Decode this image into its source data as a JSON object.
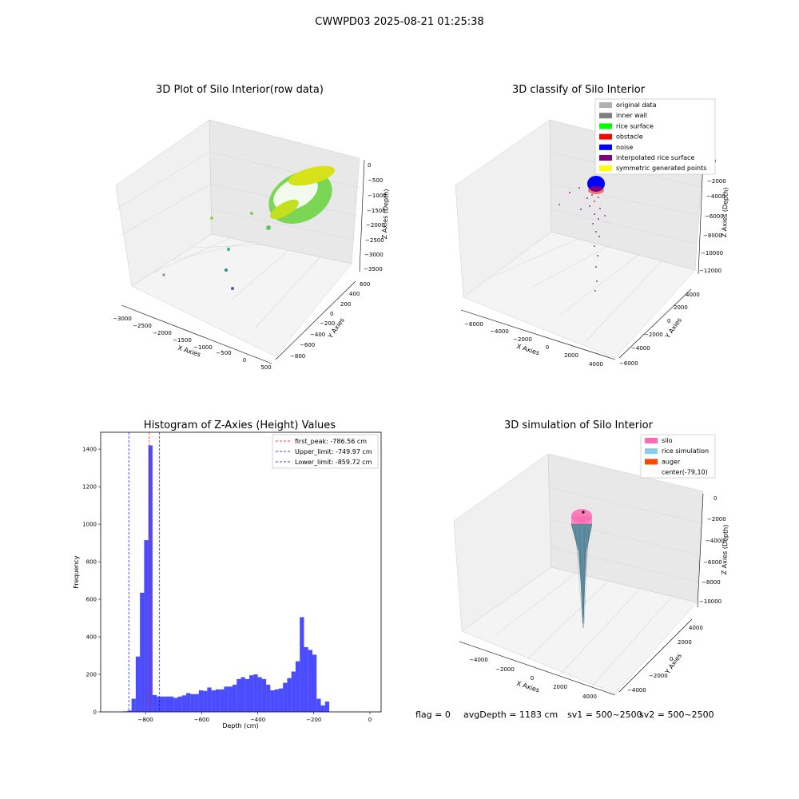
{
  "figure": {
    "suptitle": "CWWPD03 2025-08-21 01:25:38",
    "status": {
      "flag": "flag = 0",
      "avg_depth": "avgDepth = 1183 cm",
      "sv1": "sv1 = 500~2500",
      "sv2": "sv2 = 500~2500"
    }
  },
  "panels": {
    "raw": {
      "title": "3D Plot of Silo Interior(row data)",
      "xlabel": "X Axies",
      "ylabel": "Y Axies",
      "zlabel": "Z Axies (Depth)",
      "xticks": [
        "−3000",
        "−2500",
        "−2000",
        "−1500",
        "−1000",
        "−500",
        "0",
        "500"
      ],
      "yticks": [
        "−800",
        "−600",
        "−400",
        "−200",
        "0",
        "200",
        "400",
        "600"
      ],
      "zticks": [
        "0",
        "−500",
        "−1000",
        "−1500",
        "−2000",
        "−2500",
        "−3000",
        "−3500"
      ]
    },
    "classify": {
      "title": "3D classify of Silo Interior",
      "xlabel": "X Axies",
      "ylabel": "Y Axies",
      "zlabel": "Z Axies (Depth)",
      "xticks": [
        "−6000",
        "−4000",
        "−2000",
        "0",
        "2000",
        "4000"
      ],
      "yticks": [
        "−6000",
        "−4000",
        "−2000",
        "0",
        "2000",
        "4000"
      ],
      "zticks": [
        "0",
        "−2000",
        "−4000",
        "−6000",
        "−8000",
        "−10000",
        "−12000"
      ],
      "legend": [
        {
          "label": "original data",
          "color": "#b0b0b0"
        },
        {
          "label": "inner wall",
          "color": "#808080"
        },
        {
          "label": "rice surface",
          "color": "#00ff00"
        },
        {
          "label": "obstacle",
          "color": "#ff0000"
        },
        {
          "label": "noise",
          "color": "#0000ff"
        },
        {
          "label": "interpolated rice surface",
          "color": "#800080"
        },
        {
          "label": "symmetric generated points",
          "color": "#ffff00"
        }
      ]
    },
    "simulation": {
      "title": "3D simulation of Silo Interior",
      "xlabel": "X Axies",
      "ylabel": "Y Axies",
      "zlabel": "Z Axies (Depth)",
      "xticks": [
        "−4000",
        "−2000",
        "0",
        "2000",
        "4000"
      ],
      "yticks": [
        "−4000",
        "−2000",
        "0",
        "2000",
        "4000"
      ],
      "zticks": [
        "0",
        "−2000",
        "−4000",
        "−6000",
        "−8000",
        "−10000"
      ],
      "legend": [
        {
          "label": "silo",
          "color": "#ff69b4"
        },
        {
          "label": "rice simulation",
          "color": "#87ceeb"
        },
        {
          "label": "auger",
          "color": "#ff4500"
        },
        {
          "label": "center(-79,10)",
          "color": "#ffffff"
        }
      ]
    }
  },
  "chart_data": [
    {
      "type": "bar",
      "title": "Histogram of Z-Axies (Height) Values",
      "xlabel": "Depth (cm)",
      "ylabel": "Frequency",
      "xlim": [
        -960,
        40
      ],
      "ylim": [
        0,
        1490
      ],
      "xticks": [
        -800,
        -600,
        -400,
        -200,
        0
      ],
      "yticks": [
        0,
        200,
        400,
        600,
        800,
        1000,
        1200,
        1400
      ],
      "bar_color": "#0000ff",
      "bar_alpha": 0.7,
      "bin_width": 15,
      "bins_start": -880,
      "values": [
        3,
        7,
        70,
        295,
        635,
        915,
        1420,
        90,
        82,
        82,
        82,
        82,
        75,
        82,
        88,
        100,
        95,
        95,
        115,
        112,
        130,
        115,
        120,
        120,
        135,
        135,
        145,
        175,
        185,
        175,
        195,
        200,
        185,
        175,
        145,
        115,
        120,
        125,
        155,
        180,
        215,
        270,
        505,
        345,
        330,
        305,
        70,
        35,
        55
      ],
      "reference_lines": [
        {
          "label": "first_peak: -786.56 cm",
          "x": -786.56,
          "color": "#ff0000"
        },
        {
          "label": "Upper_limit: -749.97 cm",
          "x": -749.97,
          "color": "#0000ff"
        },
        {
          "label": "Lower_limit: -859.72 cm",
          "x": -859.72,
          "color": "#0000ff"
        }
      ],
      "legend_position": "top-right"
    }
  ]
}
